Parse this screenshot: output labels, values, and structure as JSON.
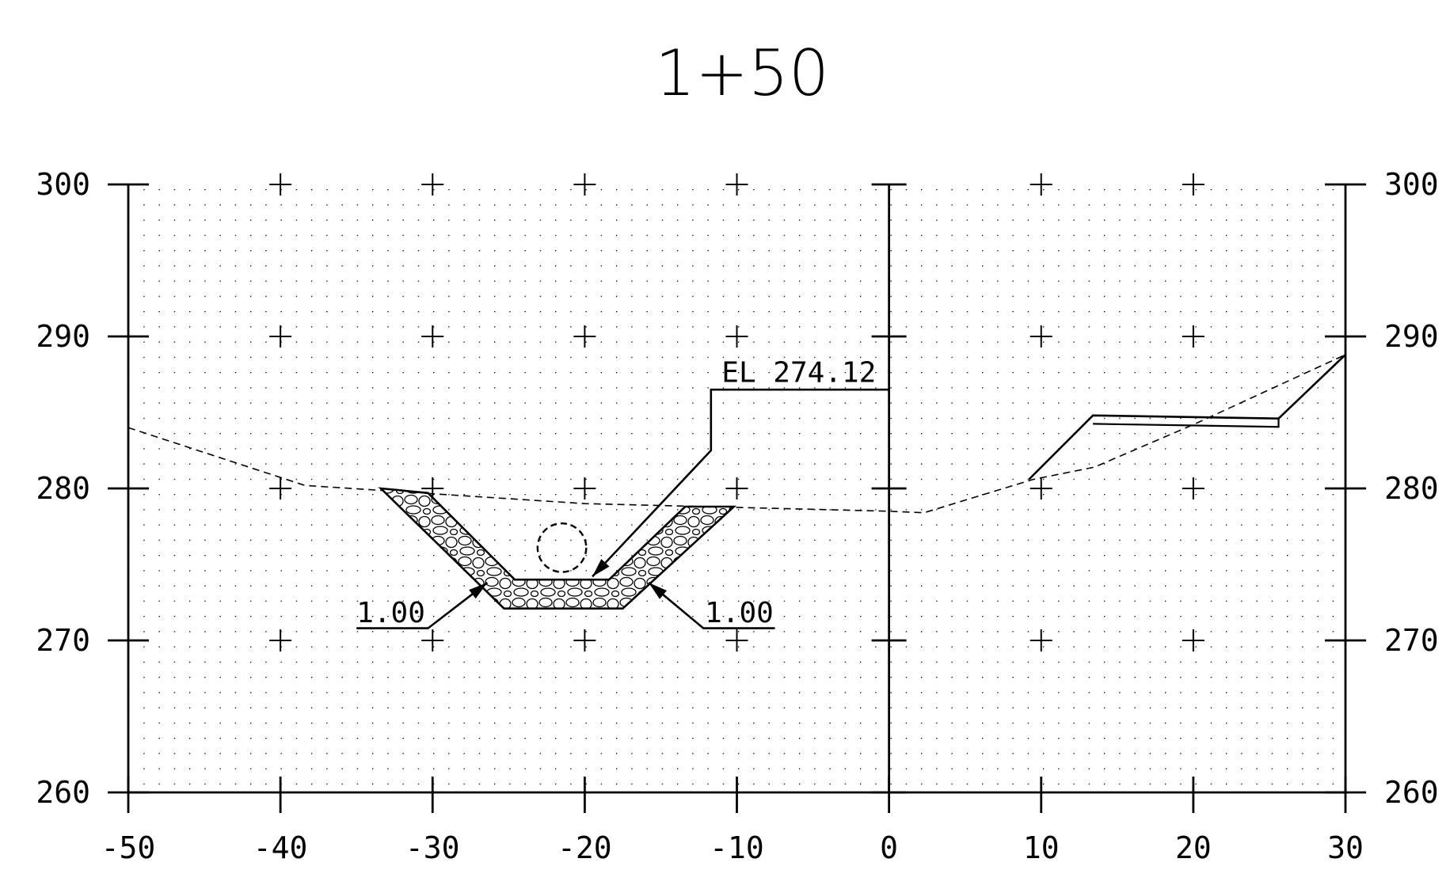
{
  "title": "1+50",
  "chart_data": {
    "type": "cross-section",
    "xlim": [
      -50,
      30
    ],
    "ylim": [
      260,
      300
    ],
    "x_ticks": [
      "-50",
      "-40",
      "-30",
      "-20",
      "-10",
      "0",
      "10",
      "20",
      "30"
    ],
    "x_tick_values": [
      -50,
      -40,
      -30,
      -20,
      -10,
      0,
      10,
      20,
      30
    ],
    "y_ticks_left": [
      "300",
      "290",
      "280",
      "270",
      "260"
    ],
    "y_ticks_right": [
      "300",
      "290",
      "280",
      "270",
      "260"
    ],
    "y_tick_values": [
      300,
      290,
      280,
      270,
      260
    ],
    "grid": "dotted with cross markers every 10 units",
    "existing_ground": [
      [
        -50,
        284
      ],
      [
        -38.4,
        280.2
      ],
      [
        -20,
        279
      ],
      [
        0,
        278.5
      ],
      [
        2.3,
        278.4
      ],
      [
        9.5,
        280.6
      ],
      [
        13.5,
        281.4
      ],
      [
        20,
        284.2
      ],
      [
        30,
        288.8
      ]
    ],
    "left_channel": {
      "outer": [
        [
          -33.4,
          280
        ],
        [
          -25.3,
          272.1
        ],
        [
          -17.5,
          272.1
        ],
        [
          -10.2,
          278.8
        ]
      ],
      "inner": [
        [
          -30.3,
          279.7
        ],
        [
          -24.6,
          274
        ],
        [
          -18.4,
          274
        ],
        [
          -13.4,
          278.8
        ]
      ],
      "pipe_center": [
        -21.5,
        276.1
      ],
      "pipe_radius": 1.6
    },
    "right_bench": [
      [
        9.2,
        280.6
      ],
      [
        13.4,
        284.8
      ],
      [
        25.6,
        284.6
      ],
      [
        30,
        288.8
      ]
    ],
    "annotations": [
      {
        "text": "EL 274.12",
        "leader": [
          [
            -19.5,
            274.2
          ],
          [
            -11.7,
            282.5
          ],
          [
            -11.7,
            286.5
          ],
          [
            0,
            286.5
          ]
        ],
        "text_at": [
          -11,
          287
        ]
      },
      {
        "text": "1.00",
        "leader": [
          [
            -26.4,
            273.8
          ],
          [
            -30.3,
            270.8
          ],
          [
            -35,
            270.8
          ]
        ],
        "text_at": [
          -35,
          271.2
        ]
      },
      {
        "text": "1.00",
        "leader": [
          [
            -15.8,
            273.8
          ],
          [
            -12.2,
            270.8
          ],
          [
            -7.5,
            270.8
          ]
        ],
        "text_at": [
          -12.1,
          271.2
        ]
      }
    ]
  }
}
